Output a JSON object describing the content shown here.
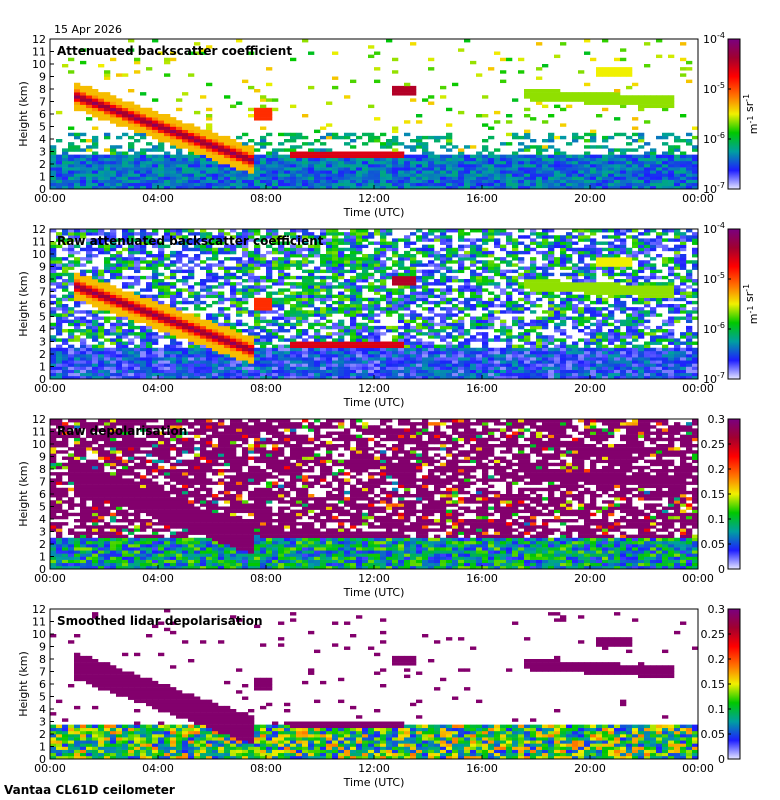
{
  "date": "15 Apr 2026",
  "footer": "Vantaa CL61D ceilometer",
  "colors": {
    "colormap": [
      "#e6e6ff",
      "#1e1eff",
      "#00a0a0",
      "#00c800",
      "#f0f000",
      "#ff7000",
      "#ff0000",
      "#a00030",
      "#7a0080"
    ],
    "frame": "#000000"
  },
  "chart_data": [
    {
      "type": "heatmap",
      "title": "Attenuated backscatter coefficient",
      "xlabel": "Time (UTC)",
      "ylabel": "Height (km)",
      "x_ticks": [
        "00:00",
        "04:00",
        "08:00",
        "12:00",
        "16:00",
        "20:00",
        "00:00"
      ],
      "y_ticks": [
        "0",
        "1",
        "2",
        "3",
        "4",
        "5",
        "6",
        "7",
        "8",
        "9",
        "10",
        "11",
        "12"
      ],
      "ylim": [
        0,
        12
      ],
      "xlim_hours": [
        0,
        24
      ],
      "colorbar": {
        "scale": "log",
        "ticks": [
          "10-7",
          "10-6",
          "10-5",
          "10-4"
        ],
        "label": "m-1 sr-1",
        "range": [
          1e-07,
          0.0001
        ]
      },
      "features": [
        {
          "name": "descending cloud layer",
          "time_h": [
            1.0,
            7.5
          ],
          "height_km": [
            7.4,
            2.3
          ],
          "level": 0.85
        },
        {
          "name": "low cloud",
          "time_h": [
            9.0,
            13.0
          ],
          "height_km": [
            2.6,
            2.8
          ],
          "level": 0.8
        },
        {
          "name": "cloud patch",
          "time_h": [
            12.6,
            13.6
          ],
          "height_km": [
            7.9,
            7.9
          ],
          "level": 0.85
        },
        {
          "name": "mid-level cloud",
          "time_h": [
            17.5,
            23.0
          ],
          "height_km": [
            7.5,
            7.0
          ],
          "level": 0.45
        },
        {
          "name": "boundary layer",
          "time_h": [
            0,
            24
          ],
          "height_km": [
            0,
            2.8
          ],
          "level": 0.25
        }
      ]
    },
    {
      "type": "heatmap",
      "title": "Raw attenuated backscatter coefficient",
      "xlabel": "Time (UTC)",
      "ylabel": "Height (km)",
      "x_ticks": [
        "00:00",
        "04:00",
        "08:00",
        "12:00",
        "16:00",
        "20:00",
        "00:00"
      ],
      "y_ticks": [
        "0",
        "1",
        "2",
        "3",
        "4",
        "5",
        "6",
        "7",
        "8",
        "9",
        "10",
        "11",
        "12"
      ],
      "ylim": [
        0,
        12
      ],
      "xlim_hours": [
        0,
        24
      ],
      "colorbar": {
        "scale": "log",
        "ticks": [
          "10-7",
          "10-6",
          "10-5",
          "10-4"
        ],
        "label": "m-1 sr-1",
        "range": [
          1e-07,
          0.0001
        ]
      }
    },
    {
      "type": "heatmap",
      "title": "Raw depolarisation",
      "xlabel": "Time (UTC)",
      "ylabel": "Height (km)",
      "x_ticks": [
        "00:00",
        "04:00",
        "08:00",
        "12:00",
        "16:00",
        "20:00",
        "00:00"
      ],
      "y_ticks": [
        "0",
        "1",
        "2",
        "3",
        "4",
        "5",
        "6",
        "7",
        "8",
        "9",
        "10",
        "11",
        "12"
      ],
      "ylim": [
        0,
        12
      ],
      "xlim_hours": [
        0,
        24
      ],
      "colorbar": {
        "scale": "linear",
        "ticks": [
          "0",
          "0.05",
          "0.1",
          "0.15",
          "0.2",
          "0.25",
          "0.3"
        ],
        "range": [
          0,
          0.3
        ]
      }
    },
    {
      "type": "heatmap",
      "title": "Smoothed lidar depolarisation",
      "xlabel": "Time (UTC)",
      "ylabel": "Height (km)",
      "x_ticks": [
        "00:00",
        "04:00",
        "08:00",
        "12:00",
        "16:00",
        "20:00",
        "00:00"
      ],
      "y_ticks": [
        "0",
        "1",
        "2",
        "3",
        "4",
        "5",
        "6",
        "7",
        "8",
        "9",
        "10",
        "11",
        "12"
      ],
      "ylim": [
        0,
        12
      ],
      "xlim_hours": [
        0,
        24
      ],
      "colorbar": {
        "scale": "linear",
        "ticks": [
          "0",
          "0.05",
          "0.1",
          "0.15",
          "0.2",
          "0.25",
          "0.3"
        ],
        "range": [
          0,
          0.3
        ]
      }
    }
  ]
}
